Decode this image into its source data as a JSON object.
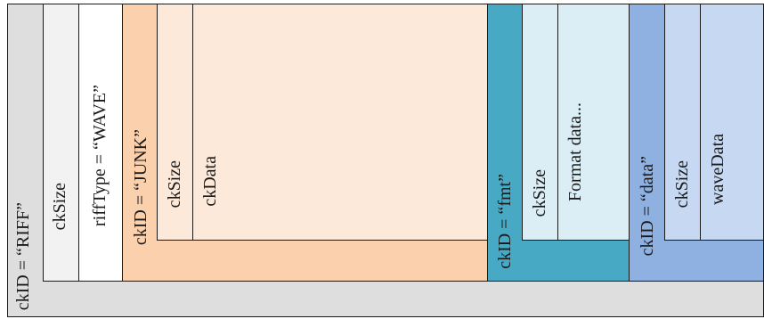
{
  "riff": {
    "ckid_label": "ckID = “RIFF”",
    "cksize_label": "ckSize",
    "rifftype_label": "riffType = “WAVE”",
    "color": "#e0e0e0"
  },
  "junk": {
    "ckid_label": "ckID = “JUNK”",
    "cksize_label": "ckSize",
    "ckdata_label": "ckData",
    "color": "#fde6d6",
    "accent": "#f9cca7"
  },
  "fmt": {
    "ckid_label": "ckID = “fmt”",
    "cksize_label": "ckSize",
    "data_label": "Format data...",
    "color": "#dbeef5",
    "accent": "#48a9c5"
  },
  "data": {
    "ckid_label": "ckID = “data”",
    "cksize_label": "ckSize",
    "wavedata_label": "waveData",
    "color": "#c6d8f2",
    "accent": "#8eb1e1"
  }
}
